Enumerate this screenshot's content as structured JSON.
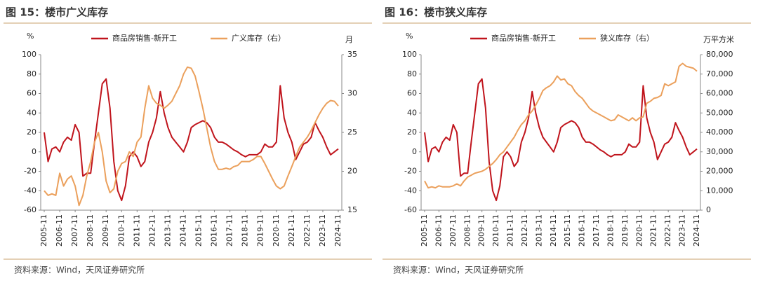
{
  "chart_data": [
    {
      "type": "line",
      "title": "图 15：楼市广义库存",
      "source": "资料来源：Wind，天风证券研究所",
      "y_label": "%",
      "y2_label": "月",
      "legend": "top",
      "categories": [
        "2005-11",
        null,
        null,
        null,
        "2006-11",
        null,
        null,
        null,
        "2007-11",
        null,
        null,
        null,
        "2008-11",
        null,
        null,
        null,
        "2009-11",
        null,
        null,
        null,
        "2010-11",
        null,
        null,
        null,
        "2011-11",
        null,
        null,
        null,
        "2012-11",
        null,
        null,
        null,
        "2013-11",
        null,
        null,
        null,
        "2014-11",
        null,
        null,
        null,
        "2015-11",
        null,
        null,
        null,
        "2016-11",
        null,
        null,
        null,
        "2017-11",
        null,
        null,
        null,
        "2018-11",
        null,
        null,
        null,
        "2019-11",
        null,
        null,
        null,
        "2020-11",
        null,
        null,
        null,
        "2021-11",
        null,
        null,
        null,
        "2022-11",
        null,
        null,
        null,
        "2023-11",
        null,
        null,
        null,
        "2024-11"
      ],
      "series": [
        {
          "name": "商品房销售-新开工",
          "color": "#c0141c",
          "values": [
            20,
            -10,
            3,
            5,
            0,
            10,
            15,
            12,
            28,
            20,
            -25,
            -22,
            -22,
            10,
            40,
            70,
            75,
            45,
            -10,
            -40,
            -50,
            -35,
            -5,
            0,
            -5,
            -15,
            -10,
            10,
            20,
            35,
            62,
            40,
            25,
            15,
            10,
            5,
            0,
            10,
            25,
            28,
            30,
            32,
            30,
            25,
            15,
            10,
            10,
            8,
            5,
            2,
            0,
            -3,
            -5,
            -3,
            -3,
            -3,
            0,
            8,
            5,
            5,
            10,
            68,
            35,
            20,
            10,
            -8,
            0,
            8,
            10,
            15,
            30,
            22,
            15,
            5,
            -3,
            0,
            3
          ]
        },
        {
          "name": "广义库存（右）",
          "color": "#eba05c",
          "axis": "y2",
          "values": [
            17.5,
            16.9,
            17.1,
            16.9,
            19.75,
            18.1,
            19,
            19.4,
            18.1,
            15.6,
            16.9,
            19.4,
            21.25,
            23.75,
            25,
            22.5,
            18.75,
            17.25,
            17.75,
            20,
            21,
            21.25,
            22.5,
            21.9,
            23.75,
            24.4,
            28.1,
            31,
            29.4,
            28.75,
            28.5,
            28.1,
            28.5,
            29,
            30,
            31,
            32.5,
            33.4,
            33.25,
            32.25,
            30.25,
            28.1,
            25.6,
            23.1,
            21.25,
            20.25,
            20.25,
            20.4,
            20.25,
            20.6,
            20.75,
            21.25,
            21.25,
            21.25,
            21.5,
            21.9,
            21.9,
            21,
            20,
            19,
            18.1,
            17.75,
            18.1,
            19.4,
            20.6,
            21.9,
            23.1,
            23.75,
            24.4,
            25.25,
            26.25,
            27.25,
            28.1,
            28.75,
            29.1,
            29,
            28.4
          ]
        }
      ],
      "ylim": [
        -60,
        100
      ],
      "yticks": [
        -60,
        -40,
        -20,
        0,
        20,
        40,
        60,
        80,
        100
      ],
      "y2lim": [
        15,
        35
      ],
      "y2ticks": [
        15,
        20,
        25,
        30,
        35
      ]
    },
    {
      "type": "line",
      "title": "图 16：楼市狭义库存",
      "source": "资料来源：Wind，天风证券研究所",
      "y_label": "%",
      "y2_label": "万平方米",
      "legend": "top",
      "categories": [
        "2005-11",
        null,
        null,
        null,
        "2006-11",
        null,
        null,
        null,
        "2007-11",
        null,
        null,
        null,
        "2008-11",
        null,
        null,
        null,
        "2009-11",
        null,
        null,
        null,
        "2010-11",
        null,
        null,
        null,
        "2011-11",
        null,
        null,
        null,
        "2012-11",
        null,
        null,
        null,
        "2013-11",
        null,
        null,
        null,
        "2014-11",
        null,
        null,
        null,
        "2015-11",
        null,
        null,
        null,
        "2016-11",
        null,
        null,
        null,
        "2017-11",
        null,
        null,
        null,
        "2018-11",
        null,
        null,
        null,
        "2019-11",
        null,
        null,
        null,
        "2020-11",
        null,
        null,
        null,
        "2021-11",
        null,
        null,
        null,
        "2022-11",
        null,
        null,
        null,
        "2023-11",
        null,
        null,
        null,
        "2024-11"
      ],
      "series": [
        {
          "name": "商品房销售-新开工",
          "color": "#c0141c",
          "values": [
            20,
            -10,
            3,
            5,
            0,
            10,
            15,
            12,
            28,
            20,
            -25,
            -22,
            -22,
            10,
            40,
            70,
            75,
            45,
            -10,
            -40,
            -50,
            -35,
            -5,
            0,
            -5,
            -15,
            -10,
            10,
            20,
            35,
            62,
            40,
            25,
            15,
            10,
            5,
            0,
            10,
            25,
            28,
            30,
            32,
            30,
            25,
            15,
            10,
            10,
            8,
            5,
            2,
            0,
            -3,
            -5,
            -3,
            -3,
            -3,
            0,
            8,
            5,
            5,
            10,
            68,
            35,
            20,
            10,
            -8,
            0,
            8,
            10,
            15,
            30,
            22,
            15,
            5,
            -3,
            0,
            3
          ]
        },
        {
          "name": "狭义库存（右）",
          "color": "#eba05c",
          "axis": "y2",
          "values": [
            15000,
            11500,
            12000,
            11500,
            12500,
            12000,
            12000,
            12000,
            12500,
            13500,
            12500,
            15000,
            17000,
            18000,
            19000,
            19500,
            20000,
            21000,
            22500,
            24000,
            26000,
            28500,
            30000,
            32500,
            35000,
            37500,
            41000,
            44000,
            46000,
            49000,
            51000,
            54000,
            57500,
            61500,
            63000,
            64000,
            66000,
            69000,
            67000,
            67500,
            65000,
            64000,
            61000,
            59000,
            57500,
            55000,
            52500,
            51000,
            50000,
            49000,
            48000,
            47000,
            46000,
            46500,
            49000,
            48000,
            47000,
            46000,
            47500,
            46000,
            47500,
            48000,
            55000,
            56000,
            57500,
            58000,
            59000,
            65000,
            64000,
            65000,
            66000,
            74000,
            75500,
            74000,
            73500,
            73000,
            71500
          ]
        }
      ],
      "ylim": [
        -60,
        100
      ],
      "yticks": [
        -60,
        -40,
        -20,
        0,
        20,
        40,
        60,
        80,
        100
      ],
      "y2lim": [
        0,
        80000
      ],
      "y2ticks": [
        0,
        {
          "value": 10000,
          "label": "10,000"
        },
        {
          "value": 20000,
          "label": "20,000"
        },
        {
          "value": 30000,
          "label": "30,000"
        },
        {
          "value": 40000,
          "label": "40,000"
        },
        {
          "value": 50000,
          "label": "50,000"
        },
        {
          "value": 60000,
          "label": "60,000"
        },
        {
          "value": 70000,
          "label": "70,000"
        },
        {
          "value": 80000,
          "label": "80,000"
        }
      ]
    }
  ]
}
